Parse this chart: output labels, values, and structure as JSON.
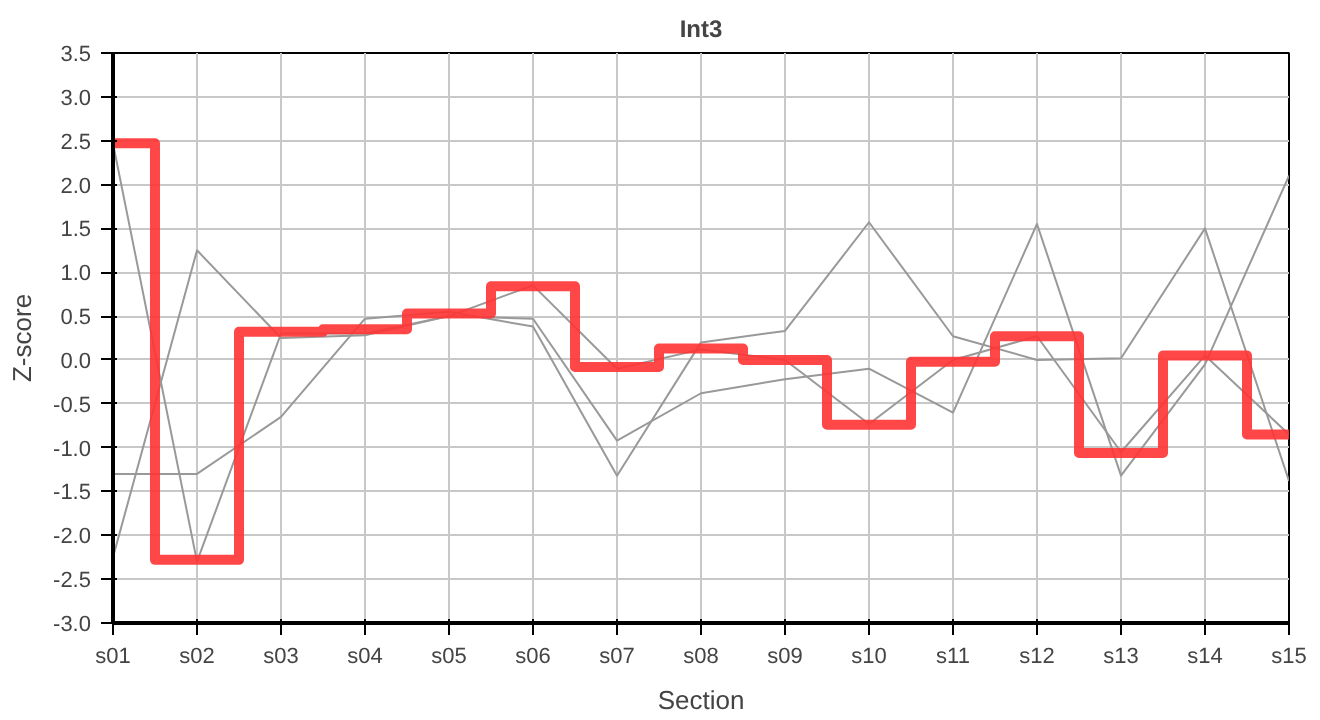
{
  "chart_data": {
    "type": "line",
    "title": "Int3",
    "xlabel": "Section",
    "ylabel": "Z-score",
    "categories": [
      "s01",
      "s02",
      "s03",
      "s04",
      "s05",
      "s06",
      "s07",
      "s08",
      "s09",
      "s10",
      "s11",
      "s12",
      "s13",
      "s14",
      "s15"
    ],
    "ylim": [
      -3.0,
      3.5
    ],
    "yticks": [
      {
        "value": -3,
        "label": "-3.0"
      },
      {
        "value": -2.5,
        "label": "-2.5"
      },
      {
        "value": -2,
        "label": "-2.0"
      },
      {
        "value": -1.5,
        "label": "-1.5"
      },
      {
        "value": -1,
        "label": "-1.0"
      },
      {
        "value": -0.5,
        "label": "-0.5"
      },
      {
        "value": 0,
        "label": "0.0"
      },
      {
        "value": 0.5,
        "label": "0.5"
      },
      {
        "value": 1,
        "label": "1.0"
      },
      {
        "value": 1.5,
        "label": "1.5"
      },
      {
        "value": 2,
        "label": "2.0"
      },
      {
        "value": 2.5,
        "label": "2.5"
      },
      {
        "value": 3,
        "label": "3.0"
      },
      {
        "value": 3.5,
        "label": "3.5"
      }
    ],
    "grid": true,
    "marker": "none",
    "line_style": "solid",
    "series": [
      {
        "color": "#999999",
        "values": [
          2.47,
          -2.3,
          0.3,
          0.3,
          0.5,
          0.85,
          -0.1,
          0.12,
          0.0,
          -0.73,
          0.0,
          0.27,
          -1.05,
          0.05,
          -0.85
        ]
      },
      {
        "color": "#999999",
        "values": [
          -2.25,
          1.25,
          0.25,
          0.28,
          0.5,
          0.47,
          -0.92,
          -0.38,
          -0.22,
          -0.1,
          -0.6,
          1.55,
          -1.32,
          -0.05,
          2.1
        ]
      },
      {
        "color": "#999999",
        "values": [
          -1.3,
          -1.3,
          -0.65,
          0.47,
          0.55,
          0.38,
          -1.32,
          0.2,
          0.33,
          1.57,
          0.27,
          0.0,
          0.02,
          1.5,
          -1.38
        ]
      },
      {
        "type": "step",
        "color": "#ff3333",
        "values": [
          2.47,
          -2.28,
          0.32,
          0.35,
          0.53,
          0.84,
          -0.08,
          0.13,
          0.0,
          -0.74,
          -0.02,
          0.27,
          -1.06,
          0.05,
          -0.85
        ]
      }
    ]
  }
}
